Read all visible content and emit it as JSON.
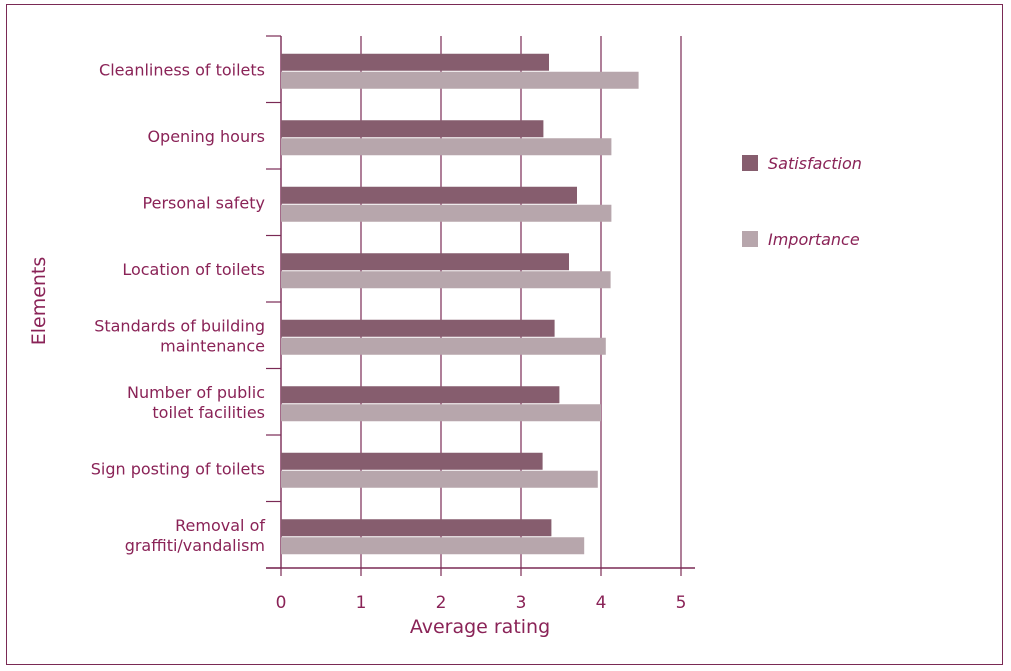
{
  "chart_data": {
    "type": "bar",
    "orientation": "horizontal",
    "title": "",
    "xlabel": "Average rating",
    "ylabel": "Elements",
    "xlim": [
      0,
      5
    ],
    "x_ticks": [
      "0",
      "1",
      "2",
      "3",
      "4",
      "5"
    ],
    "grid": "vertical",
    "legend_position": "right",
    "categories": [
      [
        "Cleanliness of toilets"
      ],
      [
        "Opening hours"
      ],
      [
        "Personal safety"
      ],
      [
        "Location of toilets"
      ],
      [
        "Standards of building",
        "maintenance"
      ],
      [
        "Number of public",
        "toilet facilities"
      ],
      [
        "Sign posting of toilets"
      ],
      [
        "Removal of",
        "graffiti/vandalism"
      ]
    ],
    "series": [
      {
        "name": "Satisfaction",
        "color": "#865d6e",
        "values": [
          3.35,
          3.28,
          3.7,
          3.6,
          3.42,
          3.48,
          3.27,
          3.38
        ]
      },
      {
        "name": "Importance",
        "color": "#b7a6ac",
        "values": [
          4.47,
          4.13,
          4.13,
          4.12,
          4.06,
          4.0,
          3.96,
          3.79
        ]
      }
    ]
  }
}
